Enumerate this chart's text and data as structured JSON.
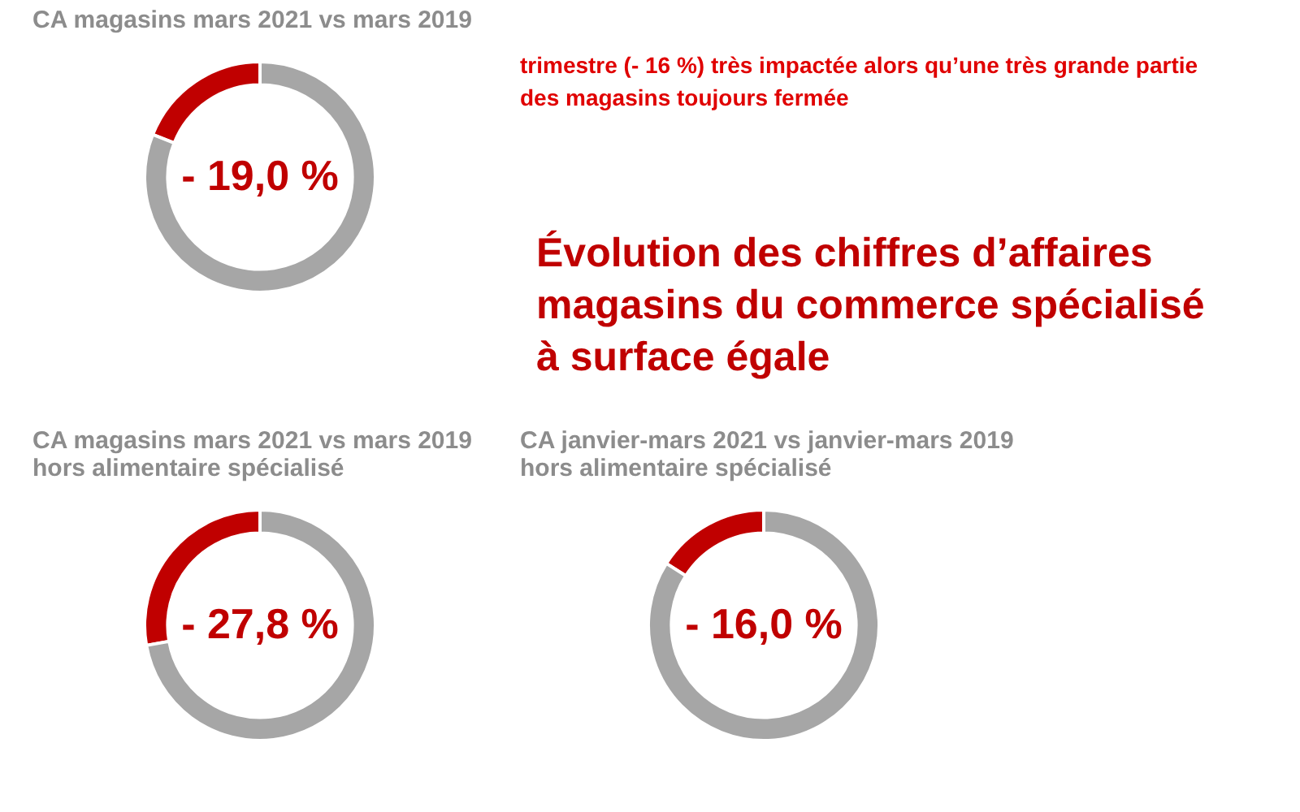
{
  "chart_data": [
    {
      "type": "donut",
      "title": "CA magasins mars 2021 vs mars 2019",
      "categories": [
        null,
        null
      ],
      "values": [
        19.0,
        81.0
      ],
      "colors": [
        "#c00000",
        "#a6a6a6"
      ],
      "annotations": [
        "- 19,0 %"
      ],
      "legend": false
    },
    {
      "type": "other",
      "title": "Évolution des chiffres d’affaires\nmagasins du commerce spécialisé\nà surface égale",
      "annotations": [
        "trimestre (- 16 %) très impactée alors qu’une très grande partie\ndes magasins toujours fermée"
      ]
    },
    {
      "type": "donut",
      "title": "CA magasins mars 2021 vs mars 2019\nhors alimentaire spécialisé",
      "categories": [
        null,
        null
      ],
      "values": [
        27.8,
        72.2
      ],
      "colors": [
        "#c00000",
        "#a6a6a6"
      ],
      "annotations": [
        "- 27,8 %"
      ],
      "legend": false
    },
    {
      "type": "donut",
      "title": "CA janvier-mars 2021 vs janvier-mars 2019\nhors alimentaire spécialisé",
      "categories": [
        null,
        null
      ],
      "values": [
        16.0,
        84.0
      ],
      "colors": [
        "#c00000",
        "#a6a6a6"
      ],
      "annotations": [
        "- 16,0 %"
      ],
      "legend": false
    }
  ]
}
